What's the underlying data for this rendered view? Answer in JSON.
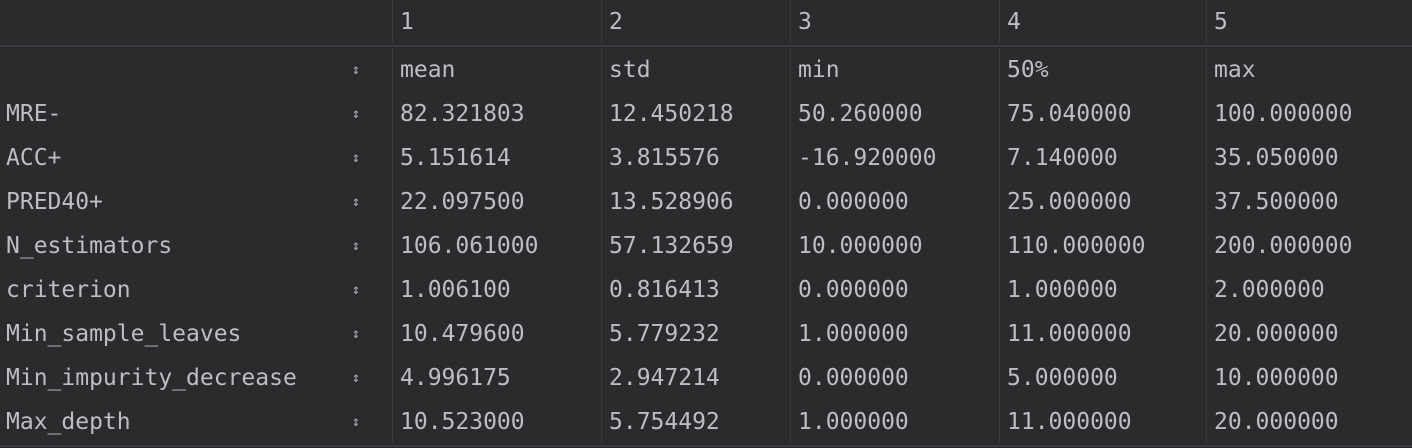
{
  "column_numbers": [
    "1",
    "2",
    "3",
    "4",
    "5"
  ],
  "column_headers": [
    "mean",
    "std",
    "min",
    "50%",
    "max"
  ],
  "rows": [
    {
      "label": "MRE-",
      "values": [
        "82.321803",
        "12.450218",
        "50.260000",
        "75.040000",
        "100.000000"
      ]
    },
    {
      "label": "ACC+",
      "values": [
        "5.151614",
        "3.815576",
        "-16.920000",
        "7.140000",
        "35.050000"
      ]
    },
    {
      "label": "PRED40+",
      "values": [
        "22.097500",
        "13.528906",
        "0.000000",
        "25.000000",
        "37.500000"
      ]
    },
    {
      "label": "N_estimators",
      "values": [
        "106.061000",
        "57.132659",
        "10.000000",
        "110.000000",
        "200.000000"
      ]
    },
    {
      "label": "criterion",
      "values": [
        "1.006100",
        "0.816413",
        "0.000000",
        "1.000000",
        "2.000000"
      ]
    },
    {
      "label": "Min_sample_leaves",
      "values": [
        "10.479600",
        "5.779232",
        "1.000000",
        "11.000000",
        "20.000000"
      ]
    },
    {
      "label": "Min_impurity_decrease",
      "values": [
        "4.996175",
        "2.947214",
        "0.000000",
        "5.000000",
        "10.000000"
      ]
    },
    {
      "label": "Max_depth",
      "values": [
        "10.523000",
        "5.754492",
        "1.000000",
        "11.000000",
        "20.000000"
      ]
    }
  ],
  "icons": {
    "sort": "sort-icon"
  },
  "colors": {
    "background": "#2b2b2d",
    "text": "#bcbec4",
    "grid": "#3a3b3f"
  }
}
